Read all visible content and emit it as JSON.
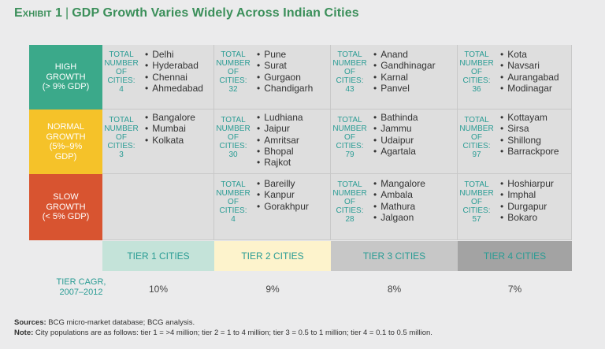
{
  "title": {
    "exhibit": "Exhibit 1",
    "separator": "|",
    "text": "GDP Growth Varies Widely Across Indian Cities"
  },
  "rows": [
    {
      "lines": [
        "HIGH",
        "GROWTH",
        "(> 9% GDP)"
      ],
      "color": "#3ba98a"
    },
    {
      "lines": [
        "NORMAL",
        "GROWTH",
        "(5%–9%",
        "GDP)"
      ],
      "color": "#f5c229"
    },
    {
      "lines": [
        "SLOW",
        "GROWTH",
        "(< 5% GDP)"
      ],
      "color": "#d85430"
    }
  ],
  "total_label": [
    "TOTAL",
    "NUMBER",
    "OF CITIES:"
  ],
  "cells": [
    [
      {
        "count": "4",
        "cities": [
          "Delhi",
          "Hyderabad",
          "Chennai",
          "Ahmedabad"
        ]
      },
      {
        "count": "32",
        "cities": [
          "Pune",
          "Surat",
          "Gurgaon",
          "Chandigarh"
        ]
      },
      {
        "count": "43",
        "cities": [
          "Anand",
          "Gandhinagar",
          "Karnal",
          "Panvel"
        ]
      },
      {
        "count": "36",
        "cities": [
          "Kota",
          "Navsari",
          "Aurangabad",
          "Modinagar"
        ]
      }
    ],
    [
      {
        "count": "3",
        "cities": [
          "Bangalore",
          "Mumbai",
          "Kolkata"
        ]
      },
      {
        "count": "30",
        "cities": [
          "Ludhiana",
          "Jaipur",
          "Amritsar",
          "Bhopal",
          "Rajkot"
        ]
      },
      {
        "count": "79",
        "cities": [
          "Bathinda",
          "Jammu",
          "Udaipur",
          "Agartala"
        ]
      },
      {
        "count": "97",
        "cities": [
          "Kottayam",
          "Sirsa",
          "Shillong",
          "Barrackpore"
        ]
      }
    ],
    [
      null,
      {
        "count": "4",
        "cities": [
          "Bareilly",
          "Kanpur",
          "Gorakhpur"
        ]
      },
      {
        "count": "28",
        "cities": [
          "Mangalore",
          "Ambala",
          "Mathura",
          "Jalgaon"
        ]
      },
      {
        "count": "57",
        "cities": [
          "Hoshiarpur",
          "Imphal",
          "Durgapur",
          "Bokaro"
        ]
      }
    ]
  ],
  "tiers": [
    {
      "label": "TIER 1 CITIES",
      "bg": "#c4e3d9",
      "fg": "#2a9c94",
      "cagr": "10%"
    },
    {
      "label": "TIER 2 CITIES",
      "bg": "#fdf3cc",
      "fg": "#2a9c94",
      "cagr": "9%"
    },
    {
      "label": "TIER 3 CITIES",
      "bg": "#c7c7c7",
      "fg": "#2a9c94",
      "cagr": "8%"
    },
    {
      "label": "TIER 4 CITIES",
      "bg": "#a3a3a3",
      "fg": "#2a9c94",
      "cagr": "7%"
    }
  ],
  "cagr_label": [
    "TIER CAGR,",
    "2007–2012"
  ],
  "notes": {
    "sources_label": "Sources:",
    "sources_text": " BCG micro-market database; BCG analysis.",
    "note_label": "Note:",
    "note_text": " City populations are as follows: tier 1 = >4 million; tier 2 = 1 to 4 million; tier 3 = 0.5 to 1 million; tier 4 = 0.1 to 0.5 million."
  }
}
